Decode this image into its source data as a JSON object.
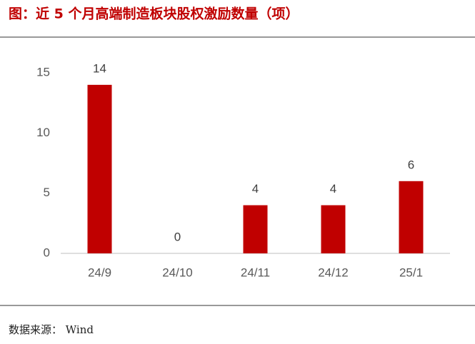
{
  "chart_data": {
    "type": "bar",
    "title": "图：近 5 个月高端制造板块股权激励数量（项）",
    "categories": [
      "24/9",
      "24/10",
      "24/11",
      "24/12",
      "25/1"
    ],
    "values": [
      14,
      0,
      4,
      4,
      6
    ],
    "color": "#c00000",
    "ylim": [
      0,
      15
    ],
    "yticks": [
      0,
      5,
      10,
      15
    ],
    "grid": false,
    "source": "数据来源： Wind"
  }
}
